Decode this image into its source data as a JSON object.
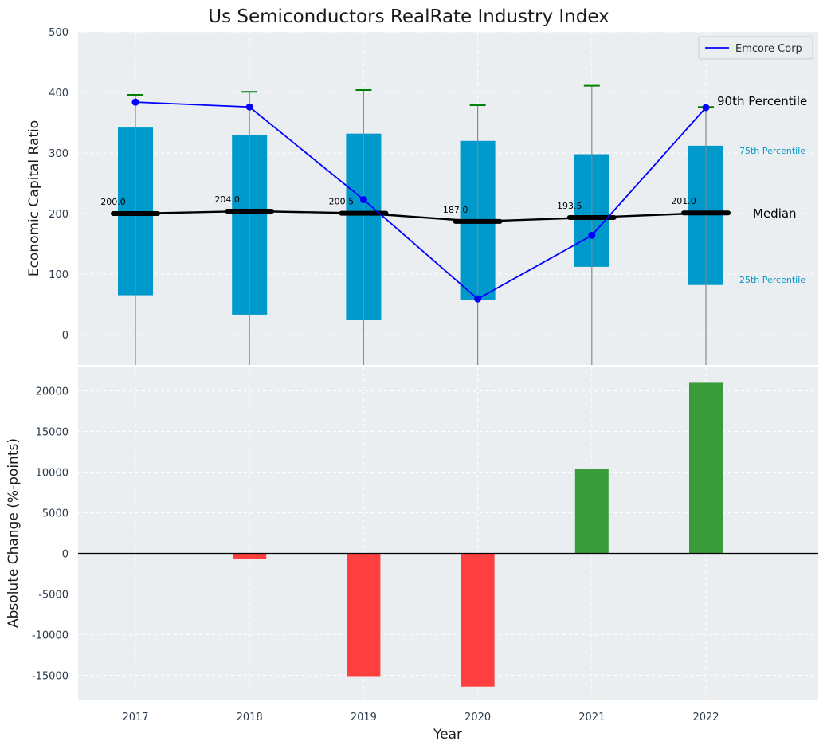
{
  "chart_data": [
    {
      "type": "box",
      "title": "Us Semiconductors RealRate Industry Index",
      "ylabel": "Economic Capital Ratio",
      "ylim": [
        -50,
        500
      ],
      "yticks": [
        0,
        100,
        200,
        300,
        400,
        500
      ],
      "categories": [
        "2017",
        "2018",
        "2019",
        "2020",
        "2021",
        "2022"
      ],
      "percentile_25": [
        65,
        33,
        24,
        57,
        112,
        82
      ],
      "percentile_75": [
        342,
        329,
        332,
        320,
        298,
        312
      ],
      "percentile_90": [
        396,
        401,
        404,
        379,
        411,
        376
      ],
      "median": [
        200.0,
        204.0,
        200.5,
        187.0,
        193.5,
        201.0
      ],
      "median_labels": [
        "200.0",
        "204.0",
        "200.5",
        "187.0",
        "193.5",
        "201.0"
      ],
      "series": [
        {
          "name": "Emcore Corp",
          "values": [
            384,
            376,
            223,
            59,
            164,
            375
          ]
        }
      ],
      "annotations": {
        "p90": "90th Percentile",
        "p75": "75th Percentile",
        "median": "Median",
        "p25": "25th Percentile"
      },
      "legend": "top-right",
      "grid": true
    },
    {
      "type": "bar",
      "xlabel": "Year",
      "ylabel": "Absolute Change (%-points)",
      "categories": [
        "2017",
        "2018",
        "2019",
        "2020",
        "2021",
        "2022"
      ],
      "values": [
        0,
        -700,
        -15200,
        -16400,
        10400,
        21000
      ],
      "ylim": [
        -18000,
        23000
      ],
      "yticks": [
        -15000,
        -10000,
        -5000,
        0,
        5000,
        10000,
        15000,
        20000
      ],
      "grid": true
    }
  ],
  "colors": {
    "box": "#0099cc",
    "whisker": "#8a8a8a",
    "cap": "#008000",
    "median": "#000000",
    "company": "#0000ff",
    "positive": "#3a9b3a",
    "negative": "#ff3f3f",
    "background": "#eaeef0",
    "label_small": "#0099c6"
  }
}
